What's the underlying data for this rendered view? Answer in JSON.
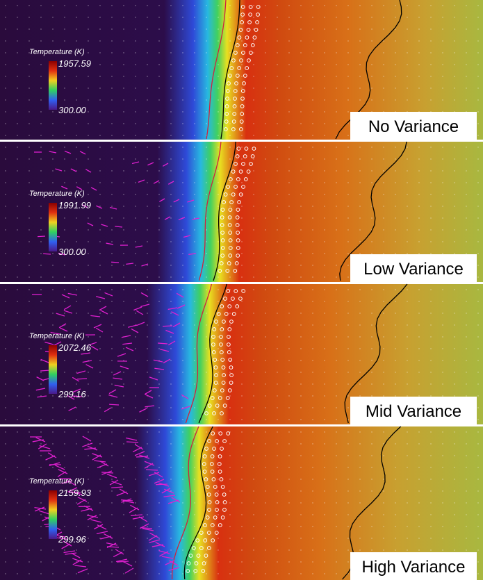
{
  "panels": [
    {
      "label": "No Variance",
      "legend_title": "Temperature (K)",
      "max": "1957.59",
      "min": "300.00"
    },
    {
      "label": "Low Variance",
      "legend_title": "Temperature (K)",
      "max": "1991.99",
      "min": "300.00"
    },
    {
      "label": "Mid Variance",
      "legend_title": "Temperature (K)",
      "max": "2072.46",
      "min": "299.16"
    },
    {
      "label": "High Variance",
      "legend_title": "Temperature (K)",
      "max": "2159.93",
      "min": "299.96"
    }
  ]
}
